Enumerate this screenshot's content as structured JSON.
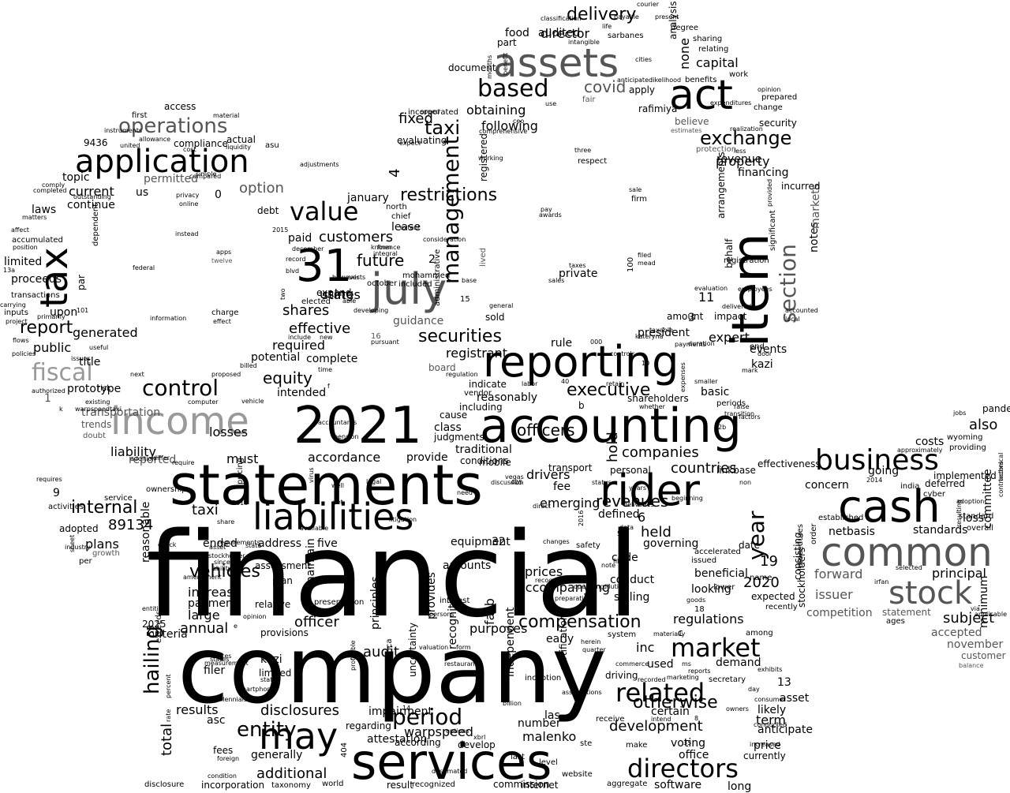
{
  "palette": {
    "background": "#ffffff",
    "dark": "#000000",
    "mid": "#555555",
    "light": "#999999"
  },
  "words": [
    "financial",
    "company",
    "services",
    "statements",
    "accounting",
    "2021",
    "income",
    "reporting",
    "item",
    "rider",
    "liabilities",
    "cash",
    "common",
    "stock",
    "business",
    "application",
    "assets",
    "act",
    "tax",
    "july",
    "31",
    "operations",
    "management",
    "value",
    "based",
    "control",
    "fiscal",
    "directors",
    "period",
    "market",
    "related",
    "compensation",
    "may",
    "hailing",
    "internal",
    "taxi",
    "year",
    "executive",
    "equity",
    "securities",
    "shares",
    "customers",
    "future",
    "reported",
    "disclosures",
    "additional",
    "audit",
    "officers",
    "drivers",
    "companies",
    "accordance",
    "effective",
    "required",
    "report",
    "current",
    "public",
    "laws",
    "continue",
    "delivery",
    "director",
    "capital",
    "exchange",
    "revenue",
    "financing",
    "section",
    "regulations",
    "officer",
    "annual",
    "total",
    "results",
    "inc",
    "used",
    "demand",
    "development",
    "certain",
    "number",
    "warpspeed",
    "malenko",
    "generally",
    "filer",
    "asc",
    "fees",
    "forward",
    "principal",
    "issuer",
    "subject",
    "also",
    "loss",
    "costs",
    "going",
    "concern",
    "netbasis",
    "standards",
    "committee",
    "deferred",
    "order",
    "pandemic",
    "long",
    "software",
    "internet",
    "commission",
    "result",
    "world",
    "incorporation",
    "disclosure",
    "recognized",
    "destimated",
    "level",
    "make",
    "office",
    "currently",
    "increased",
    "anticipate",
    "likely",
    "term",
    "asset",
    "13",
    "19",
    "2020",
    "date",
    "expected",
    "recently",
    "among",
    "competition",
    "statement",
    "accepted",
    "november",
    "customer",
    "balance",
    "minimum",
    "applicable",
    "via",
    "ages",
    "irfan",
    "selected",
    "standard",
    "overall",
    "providing",
    "wyoming",
    "jobs",
    "implemented",
    "india",
    "cyber",
    "established",
    "approximately",
    "2014",
    "adoption",
    "resulting",
    "technical",
    "contractors",
    "name",
    "consisting",
    "procedures",
    "stockholders",
    "notes",
    "markets",
    "significant",
    "incurred",
    "provided",
    "registration",
    "evaluation",
    "employees",
    "delivered",
    "accounted",
    "local",
    "door",
    "events",
    "kazi",
    "mark",
    "expert",
    "impact",
    "11",
    "3",
    "amount",
    "president",
    "kateryna",
    "taxable",
    "behalf",
    "arrangements",
    "filed",
    "mead",
    "100",
    "firm",
    "sale",
    "three",
    "respect",
    "less",
    "protection",
    "believe",
    "estimates",
    "realization",
    "expenditures",
    "security",
    "change",
    "prepared",
    "opinion",
    "work",
    "benefits",
    "relating",
    "sharing",
    "degree",
    "present",
    "courier",
    "life",
    "sarbanes",
    "intangible",
    "classification",
    "analysis",
    "none",
    "food",
    "part",
    "document",
    "months",
    "benefit",
    "anticipated",
    "likelihood",
    "cities",
    "apply",
    "rafimiya",
    "covid",
    "fair",
    "incorporated",
    "fixed",
    "taxi",
    "speed",
    "expect",
    "north",
    "chief",
    "known",
    "integral",
    "finance",
    "mohammed",
    "included",
    "administrative",
    "lived",
    "registered",
    "comprehensive",
    "working",
    "base",
    "obtaining",
    "following",
    "use",
    "ceo",
    "restrictions",
    "2",
    "4",
    "15",
    "guidance",
    "16",
    "pursuant",
    "developing",
    "able",
    "exists",
    "however",
    "elected",
    "two",
    "december",
    "record",
    "blvd",
    "2015",
    "debt",
    "option",
    "paid",
    "registrant",
    "rule",
    "000",
    "board",
    "regulation",
    "indicate",
    "reasonably",
    "vendor",
    "including",
    "b",
    "shareholders",
    "whether",
    "expenses",
    "smaller",
    "basic",
    "periods",
    "raise",
    "factors",
    "effectiveness",
    "private",
    "taxes",
    "sales",
    "pay",
    "awards",
    "general",
    "sold",
    "january",
    "property",
    "controls",
    "10",
    "retain",
    "payments",
    "duration",
    "labor",
    "40",
    "transition",
    "12b",
    "405",
    "discussion",
    "transport",
    "hold",
    "personal",
    "years",
    "beginning",
    "countries",
    "linkbase",
    "non",
    "well",
    "fee",
    "status",
    "emerging",
    "revenues",
    "defined",
    "5",
    "data",
    "6",
    "held",
    "governing",
    "accelerated",
    "issued",
    "beneficial",
    "looking",
    "lower",
    "goods",
    "18",
    "c",
    "secretary",
    "day",
    "consumer",
    "voting",
    "35",
    "intend",
    "8",
    "owners",
    "exhibits",
    "conducted",
    "conduct",
    "selling",
    "code",
    "note",
    "file",
    "2016",
    "dilutive",
    "safety",
    "prices",
    "recognize",
    "accompanying",
    "operating",
    "preparation",
    "changes",
    "32",
    "equipment",
    "provides",
    "amounts",
    "interest",
    "principles",
    "fasb",
    "persons",
    "recognition",
    "independent",
    "uncertainty",
    "america",
    "profitable",
    "inception",
    "acted",
    "assumptions",
    "certification",
    "14",
    "options",
    "404",
    "regarding",
    "attestation",
    "according",
    "las",
    "develop",
    "last",
    "xbrl",
    "billion",
    "receive",
    "ste",
    "quarter",
    "herein",
    "commerce",
    "driving",
    "recorded",
    "ms",
    "reports",
    "marketing",
    "system",
    "materially",
    "website",
    "aggregate",
    "entity",
    "evaluating",
    "doubt",
    "trends",
    "transportation",
    "1",
    "warpspeedtaxi",
    "authorized",
    "existing",
    "computer",
    "vehicle",
    "addition",
    "pension",
    "accountants",
    "conditions",
    "traditional",
    "judgments",
    "class",
    "cause",
    "mobile",
    "provide",
    "must",
    "liability",
    "losses",
    "9",
    "requires",
    "service",
    "ownership",
    "activities",
    "adopted",
    "89134",
    "reasonable",
    "plans",
    "industry",
    "sheet",
    "growth",
    "per",
    "ended",
    "address",
    "five",
    "assessment",
    "plan",
    "vehicles",
    "increase",
    "stockholder",
    "payment",
    "large",
    "since",
    "ability",
    "amendment",
    "check",
    "state",
    "differ",
    "require",
    "litigation",
    "need",
    "legal",
    "vegas",
    "direct",
    "deliveries",
    "2018",
    "yet",
    "virus",
    "pricing",
    "privacy",
    "online",
    "simple",
    "compared",
    "permitted",
    "actual",
    "asu",
    "adjustments",
    "compliance",
    "allowance",
    "9436",
    "united",
    "instruments",
    "access",
    "first",
    "material",
    "liquidity",
    "cost",
    "topic",
    "comply",
    "outstanding",
    "completed",
    "matters",
    "affect",
    "accumulated",
    "position",
    "limited",
    "13a",
    "proceeds",
    "transactions",
    "carrying",
    "inputs",
    "project",
    "flows",
    "policies",
    "upon",
    "101",
    "primarily",
    "dependent",
    "par",
    "federal",
    "instead",
    "apps",
    "twelve",
    "charge",
    "effect",
    "information",
    "useful",
    "issues",
    "next",
    "prototype",
    "risk",
    "title",
    "generated",
    "proposed",
    "billed",
    "potential",
    "new",
    "include",
    "time",
    "f",
    "intended",
    "complete",
    "using",
    "october",
    "lease",
    "consideration",
    "extent",
    "audited",
    "payable",
    "states",
    "end",
    "k",
    "expand",
    "measurement",
    "states",
    "e",
    "opinion",
    "states",
    "kazi",
    "limited",
    "states",
    "smartphone",
    "millennials",
    "restaurants",
    "foreign",
    "condition",
    "rate",
    "percent",
    "exceeds",
    "53",
    "2025",
    "entities",
    "criteria",
    "relative",
    "presentation",
    "maintain",
    "taxonomy",
    "provisions",
    "impairment",
    "otherwise",
    "price",
    "purposes",
    "early",
    "form",
    "valuation",
    "requirements",
    "us",
    "0",
    "asset",
    "share",
    "available",
    "table",
    "app",
    "1934",
    "passengers",
    "due",
    "inventory",
    "device",
    "age",
    "12",
    "8"
  ]
}
